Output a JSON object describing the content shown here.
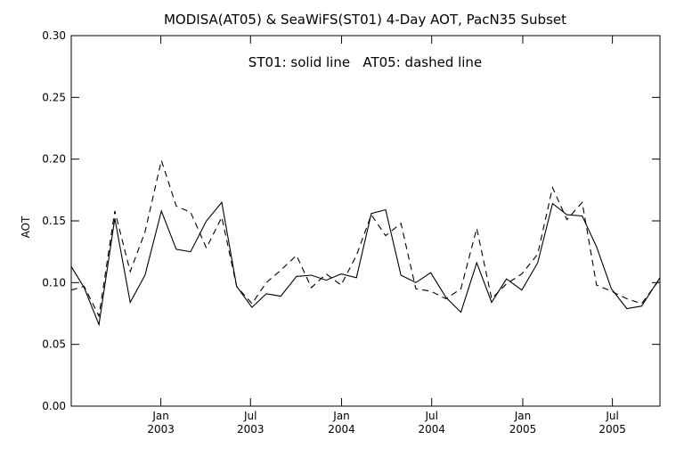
{
  "chart_data": {
    "type": "line",
    "title": "MODISA(AT05) & SeaWiFS(ST01) 4-Day AOT, PacN35 Subset",
    "annotation": "ST01: solid line   AT05: dashed line",
    "xlabel": "",
    "ylabel": "AOT",
    "x_range": [
      "2002-07-04",
      "2005-10-05"
    ],
    "ylim": [
      0.0,
      0.3
    ],
    "y_ticks": [
      0.0,
      0.05,
      0.1,
      0.15,
      0.2,
      0.25,
      0.3
    ],
    "y_tick_labels": [
      "0.00",
      "0.05",
      "0.10",
      "0.15",
      "0.20",
      "0.25",
      "0.30"
    ],
    "x_ticks": [
      {
        "date": "2003-01-01",
        "month": "Jan",
        "year": "2003"
      },
      {
        "date": "2003-07-01",
        "month": "Jul",
        "year": "2003"
      },
      {
        "date": "2004-01-01",
        "month": "Jan",
        "year": "2004"
      },
      {
        "date": "2004-07-01",
        "month": "Jul",
        "year": "2004"
      },
      {
        "date": "2005-01-01",
        "month": "Jan",
        "year": "2005"
      },
      {
        "date": "2005-07-01",
        "month": "Jul",
        "year": "2005"
      }
    ],
    "grid": false,
    "series": [
      {
        "name": "ST01",
        "line_style": "solid",
        "color": "#000000",
        "points": [
          {
            "x": "2002-07-04",
            "y": 0.113
          },
          {
            "x": "2002-07-30",
            "y": 0.096
          },
          {
            "x": "2002-08-29",
            "y": 0.066
          },
          {
            "x": "2002-09-30",
            "y": 0.152
          },
          {
            "x": "2002-10-31",
            "y": 0.084
          },
          {
            "x": "2002-11-30",
            "y": 0.106
          },
          {
            "x": "2003-01-02",
            "y": 0.158
          },
          {
            "x": "2003-02-01",
            "y": 0.127
          },
          {
            "x": "2003-03-02",
            "y": 0.125
          },
          {
            "x": "2003-04-03",
            "y": 0.15
          },
          {
            "x": "2003-05-04",
            "y": 0.165
          },
          {
            "x": "2003-06-03",
            "y": 0.097
          },
          {
            "x": "2003-07-04",
            "y": 0.08
          },
          {
            "x": "2003-08-02",
            "y": 0.091
          },
          {
            "x": "2003-08-31",
            "y": 0.089
          },
          {
            "x": "2003-10-02",
            "y": 0.105
          },
          {
            "x": "2003-11-01",
            "y": 0.106
          },
          {
            "x": "2003-12-01",
            "y": 0.102
          },
          {
            "x": "2003-12-31",
            "y": 0.107
          },
          {
            "x": "2004-01-31",
            "y": 0.104
          },
          {
            "x": "2004-03-01",
            "y": 0.156
          },
          {
            "x": "2004-03-30",
            "y": 0.159
          },
          {
            "x": "2004-04-30",
            "y": 0.106
          },
          {
            "x": "2004-05-30",
            "y": 0.1
          },
          {
            "x": "2004-06-29",
            "y": 0.108
          },
          {
            "x": "2004-07-30",
            "y": 0.088
          },
          {
            "x": "2004-08-29",
            "y": 0.076
          },
          {
            "x": "2004-09-30",
            "y": 0.116
          },
          {
            "x": "2004-10-30",
            "y": 0.084
          },
          {
            "x": "2004-11-29",
            "y": 0.103
          },
          {
            "x": "2004-12-30",
            "y": 0.094
          },
          {
            "x": "2005-01-31",
            "y": 0.116
          },
          {
            "x": "2005-03-02",
            "y": 0.164
          },
          {
            "x": "2005-03-31",
            "y": 0.155
          },
          {
            "x": "2005-05-01",
            "y": 0.154
          },
          {
            "x": "2005-05-30",
            "y": 0.129
          },
          {
            "x": "2005-06-29",
            "y": 0.095
          },
          {
            "x": "2005-07-30",
            "y": 0.079
          },
          {
            "x": "2005-08-29",
            "y": 0.081
          },
          {
            "x": "2005-10-05",
            "y": 0.104
          }
        ]
      },
      {
        "name": "AT05",
        "line_style": "dashed",
        "color": "#000000",
        "points": [
          {
            "x": "2002-07-04",
            "y": 0.094
          },
          {
            "x": "2002-07-30",
            "y": 0.097
          },
          {
            "x": "2002-08-29",
            "y": 0.073
          },
          {
            "x": "2002-09-30",
            "y": 0.158
          },
          {
            "x": "2002-10-31",
            "y": 0.109
          },
          {
            "x": "2002-11-30",
            "y": 0.141
          },
          {
            "x": "2003-01-02",
            "y": 0.199
          },
          {
            "x": "2003-02-01",
            "y": 0.162
          },
          {
            "x": "2003-03-02",
            "y": 0.157
          },
          {
            "x": "2003-04-03",
            "y": 0.128
          },
          {
            "x": "2003-05-04",
            "y": 0.153
          },
          {
            "x": "2003-06-03",
            "y": 0.097
          },
          {
            "x": "2003-07-04",
            "y": 0.083
          },
          {
            "x": "2003-08-02",
            "y": 0.1
          },
          {
            "x": "2003-08-31",
            "y": 0.11
          },
          {
            "x": "2003-10-02",
            "y": 0.122
          },
          {
            "x": "2003-11-01",
            "y": 0.096
          },
          {
            "x": "2003-12-01",
            "y": 0.107
          },
          {
            "x": "2003-12-31",
            "y": 0.098
          },
          {
            "x": "2004-01-31",
            "y": 0.122
          },
          {
            "x": "2004-03-01",
            "y": 0.155
          },
          {
            "x": "2004-03-30",
            "y": 0.138
          },
          {
            "x": "2004-04-30",
            "y": 0.148
          },
          {
            "x": "2004-05-30",
            "y": 0.095
          },
          {
            "x": "2004-06-29",
            "y": 0.093
          },
          {
            "x": "2004-07-30",
            "y": 0.087
          },
          {
            "x": "2004-08-29",
            "y": 0.095
          },
          {
            "x": "2004-09-30",
            "y": 0.144
          },
          {
            "x": "2004-10-30",
            "y": 0.087
          },
          {
            "x": "2004-11-29",
            "y": 0.099
          },
          {
            "x": "2004-12-30",
            "y": 0.107
          },
          {
            "x": "2005-01-31",
            "y": 0.123
          },
          {
            "x": "2005-03-02",
            "y": 0.177
          },
          {
            "x": "2005-03-31",
            "y": 0.151
          },
          {
            "x": "2005-05-01",
            "y": 0.165
          },
          {
            "x": "2005-05-30",
            "y": 0.098
          },
          {
            "x": "2005-06-29",
            "y": 0.093
          },
          {
            "x": "2005-07-30",
            "y": 0.087
          },
          {
            "x": "2005-08-29",
            "y": 0.083
          },
          {
            "x": "2005-10-05",
            "y": 0.103
          }
        ]
      }
    ]
  }
}
